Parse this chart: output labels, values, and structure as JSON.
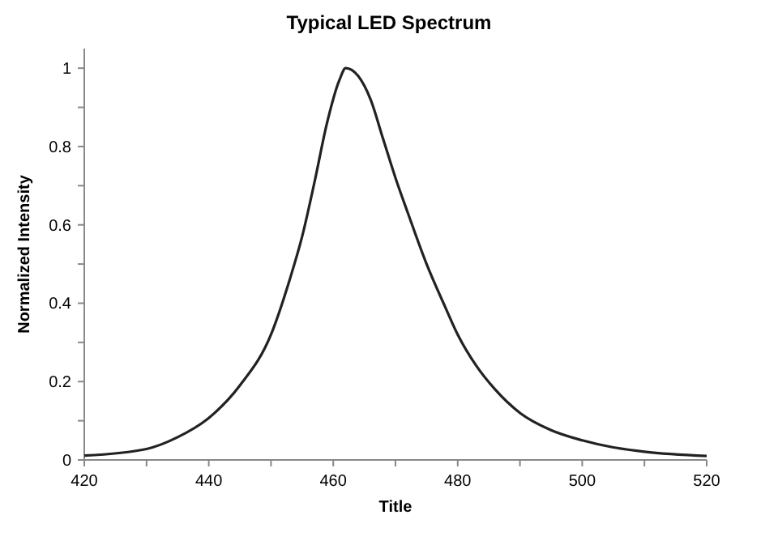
{
  "chart_data": {
    "type": "line",
    "title": "Typical LED Spectrum",
    "xlabel": "Title",
    "ylabel": "Normalized Intensity",
    "x": [
      420,
      430,
      435,
      440,
      445,
      450,
      453,
      455,
      457,
      459,
      461,
      462,
      464,
      466,
      468,
      470,
      472,
      475,
      478,
      480,
      483,
      486,
      490,
      495,
      500,
      505,
      510,
      520
    ],
    "series": [
      {
        "color": "#222222",
        "values": [
          0.011,
          0.028,
          0.058,
          0.107,
          0.19,
          0.32,
          0.46,
          0.57,
          0.71,
          0.86,
          0.97,
          1.0,
          0.98,
          0.92,
          0.82,
          0.72,
          0.63,
          0.5,
          0.39,
          0.32,
          0.24,
          0.18,
          0.12,
          0.076,
          0.05,
          0.032,
          0.021,
          0.01
        ]
      }
    ],
    "xlim": [
      420,
      520
    ],
    "ylim": [
      0,
      1.05
    ],
    "xticks": [
      420,
      {
        "value": 430,
        "label": null
      },
      440,
      {
        "value": 450,
        "label": null
      },
      460,
      {
        "value": 470,
        "label": null
      },
      480,
      {
        "value": 490,
        "label": null
      },
      500,
      {
        "value": 510,
        "label": null
      },
      520
    ],
    "yticks": [
      0,
      {
        "value": 0.1,
        "label": null
      },
      0.2,
      {
        "value": 0.3,
        "label": null
      },
      0.4,
      {
        "value": 0.5,
        "label": null
      },
      0.6,
      {
        "value": 0.7,
        "label": null
      },
      0.8,
      {
        "value": 0.9,
        "label": null
      },
      1
    ],
    "grid": false,
    "marker": "none",
    "line_style": "solid"
  }
}
